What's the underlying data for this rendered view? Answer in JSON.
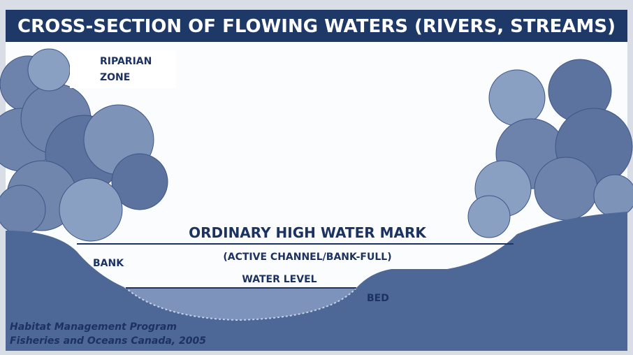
{
  "title": "CROSS-SECTION OF FLOWING WATERS (RIVERS, STREAMS)",
  "labels": {
    "riparian_zone": [
      "RIPARIAN",
      "ZONE"
    ],
    "high_water_mark": "ORDINARY HIGH WATER MARK",
    "active_channel": "(ACTIVE CHANNEL/BANK-FULL)",
    "bank": "BANK",
    "water_level": "WATER LEVEL",
    "bed": "BED"
  },
  "credit": [
    "Habitat Management Program",
    "Fisheries and Oceans Canada, 2005"
  ]
}
